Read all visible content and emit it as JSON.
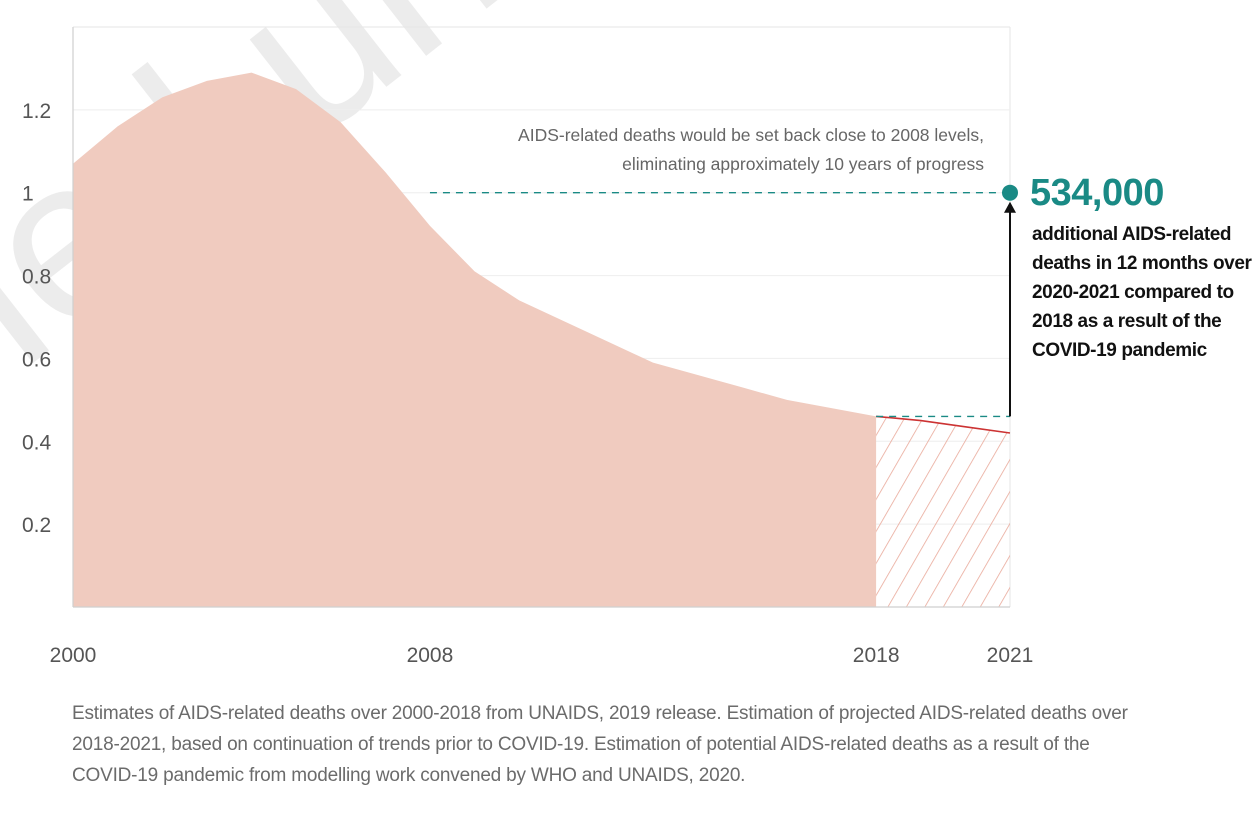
{
  "chart_data": {
    "type": "area",
    "title": "",
    "xlabel": "",
    "ylabel": "",
    "xlim": [
      2000,
      2021
    ],
    "ylim": [
      0,
      1.4
    ],
    "x_ticks": [
      "2000",
      "2008",
      "2018",
      "2021"
    ],
    "y_ticks": [
      "0.2",
      "0.4",
      "0.6",
      "0.8",
      "1",
      "1.2"
    ],
    "grid": true,
    "series": [
      {
        "kind": "estimated",
        "color": "#f0cbbf",
        "x": [
          2000,
          2001,
          2002,
          2003,
          2004,
          2005,
          2006,
          2007,
          2008,
          2009,
          2010,
          2011,
          2012,
          2013,
          2014,
          2015,
          2016,
          2017,
          2018
        ],
        "values": [
          1.07,
          1.16,
          1.23,
          1.27,
          1.29,
          1.25,
          1.17,
          1.05,
          0.92,
          0.81,
          0.74,
          0.69,
          0.64,
          0.59,
          0.56,
          0.53,
          0.5,
          0.48,
          0.46
        ]
      },
      {
        "kind": "projected",
        "color": "#cc3333",
        "hatch_color": "#e9a99a",
        "x": [
          2018,
          2019,
          2020,
          2021
        ],
        "values": [
          0.46,
          0.45,
          0.435,
          0.42
        ]
      }
    ],
    "reference_lines": [
      {
        "y": 0.46,
        "x_start": 2018,
        "x_end": 2021,
        "style": "dashed",
        "color": "#1a8a85"
      },
      {
        "y": 1.0,
        "x_start": 2008,
        "x_end": 2021,
        "style": "dashed",
        "color": "#1a8a85"
      }
    ],
    "highlight_point": {
      "x": 2021,
      "y": 1.0,
      "color": "#1a8a85"
    },
    "arrow": {
      "x": 2021,
      "from": 0.46,
      "to": 1.0
    },
    "annotation": {
      "lines": [
        "AIDS-related deaths would be set back close to 2008 levels,",
        "eliminating approximately 10 years of progress"
      ]
    }
  },
  "callout": {
    "number": "534,000",
    "lines": [
      "additional AIDS-related",
      "deaths in 12 months over",
      "2020-2021 compared to",
      "2018 as a result of the",
      "COVID-19 pandemic"
    ]
  },
  "caption": "Estimates of AIDS-related deaths over 2000-2018 from UNAIDS, 2019 release. Estimation of projected AIDS-related deaths over 2018-2021, based on continuation of trends prior to COVID-19. Estimation of potential AIDS-related deaths as a result of the COVID-19 pandemic from modelling work convened by WHO and UNAIDS, 2020.",
  "watermark_text": "ned un"
}
